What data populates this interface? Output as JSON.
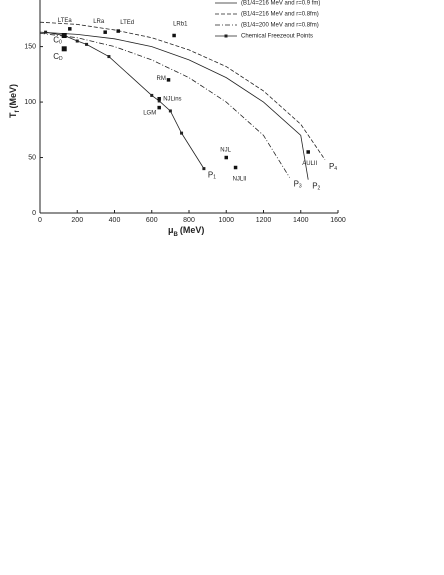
{
  "chart_data": {
    "type": "line",
    "xlabel_symbol": "μ",
    "xlabel_sub": "B",
    "xlabel_unit": "(MeV)",
    "ylabel_symbol": "T",
    "ylabel_sub": "f",
    "ylabel_unit": "(MeV)",
    "xlim": [
      0,
      1600
    ],
    "xticks": [
      0,
      200,
      400,
      600,
      800,
      1000,
      1200,
      1400,
      1600
    ],
    "ylim": [
      0,
      192
    ],
    "yticks": [
      0,
      50,
      100,
      150
    ],
    "legend": "top-right",
    "series": [
      {
        "name": "(B1/4=216 MeV and r=0.9 fm)",
        "color": "#222222",
        "dash": "solid",
        "end_label": "P",
        "end_sub": "2",
        "x": [
          0,
          200,
          400,
          600,
          800,
          1000,
          1200,
          1400,
          1440
        ],
        "values": [
          163,
          161,
          157,
          150,
          138,
          122,
          100,
          70,
          30
        ]
      },
      {
        "name": "(B1/4=216 MeV and r=0.8fm)",
        "color": "#222222",
        "dash": "dashed",
        "end_label": "P",
        "end_sub": "4",
        "x": [
          0,
          200,
          400,
          600,
          800,
          1000,
          1200,
          1400,
          1530
        ],
        "values": [
          172,
          170,
          165,
          158,
          147,
          132,
          110,
          80,
          48
        ]
      },
      {
        "name": "(B1/4=200 MeV and r=0.8fm)",
        "color": "#222222",
        "dash": "dashdot",
        "end_label": "P",
        "end_sub": "3",
        "x": [
          0,
          200,
          400,
          600,
          800,
          1000,
          1200,
          1340
        ],
        "values": [
          162,
          158,
          150,
          138,
          122,
          100,
          70,
          32
        ]
      },
      {
        "name": "Chemical Freezeout Points",
        "color": "#222222",
        "dash": "solid",
        "marker": "square",
        "end_label": "P",
        "end_sub": "1",
        "x": [
          30,
          130,
          200,
          250,
          370,
          600,
          640,
          700,
          760,
          880
        ],
        "values": [
          163,
          160,
          155,
          152,
          141,
          106,
          101,
          92,
          72,
          40
        ]
      }
    ],
    "annotations": [
      {
        "text": "LTEa",
        "x": 160,
        "y": 166
      },
      {
        "text": "LRa",
        "x": 350,
        "y": 163
      },
      {
        "text": "LTEd",
        "x": 420,
        "y": 164
      },
      {
        "text": "LRb1",
        "x": 720,
        "y": 160
      },
      {
        "text": "C",
        "sub": "0",
        "x": 130,
        "y": 160
      },
      {
        "text": "C",
        "sub": "D",
        "x": 130,
        "y": 148
      },
      {
        "text": "RM",
        "x": 690,
        "y": 120
      },
      {
        "text": "NJLins",
        "x": 640,
        "y": 103
      },
      {
        "text": "LGM",
        "x": 640,
        "y": 95
      },
      {
        "text": "NJL",
        "x": 1000,
        "y": 50
      },
      {
        "text": "NJLII",
        "x": 1050,
        "y": 41
      },
      {
        "text": "AULII",
        "x": 1440,
        "y": 55
      }
    ]
  }
}
